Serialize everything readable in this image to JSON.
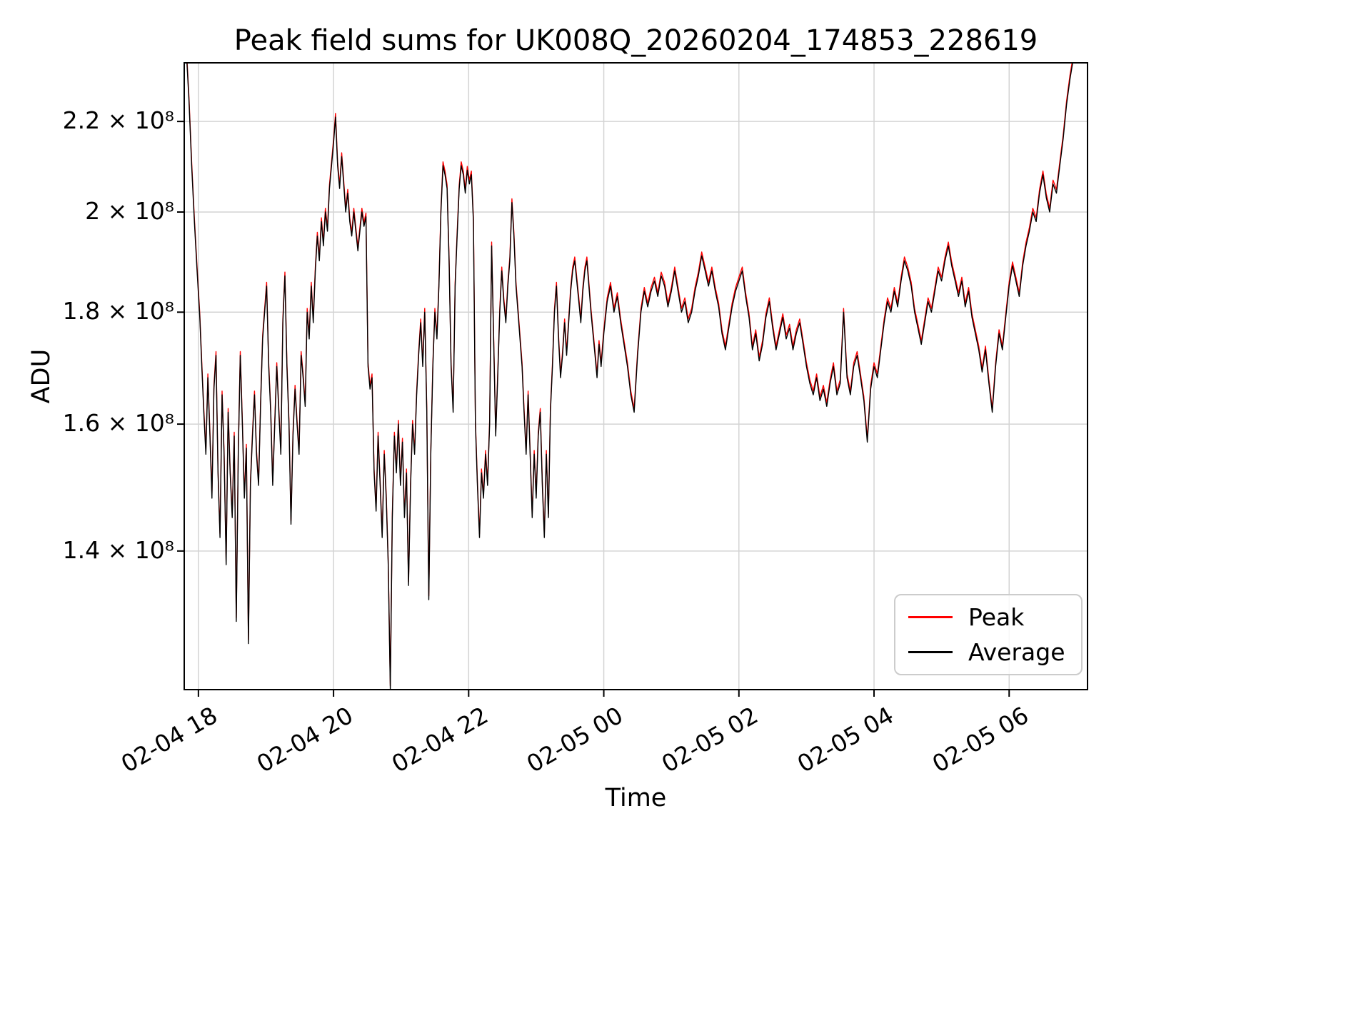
{
  "chart_data": {
    "type": "line",
    "title": "Peak field sums for UK008Q_20260204_174853_228619",
    "xlabel": "Time",
    "ylabel": "ADU",
    "yscale": "log",
    "grid": true,
    "grid_color": "#d4d4d4",
    "spine_color": "#000000",
    "x_reference": "hours since 02-04 00:00",
    "xlim_hours": [
      17.79,
      31.16
    ],
    "value_unit": "1e8 ADU",
    "ylim_1e8": [
      1.21,
      2.34
    ],
    "xticks": [
      {
        "t": 18,
        "label": "02-04 18"
      },
      {
        "t": 20,
        "label": "02-04 20"
      },
      {
        "t": 22,
        "label": "02-04 22"
      },
      {
        "t": 24,
        "label": "02-05 00"
      },
      {
        "t": 26,
        "label": "02-05 02"
      },
      {
        "t": 28,
        "label": "02-05 04"
      },
      {
        "t": 30,
        "label": "02-05 06"
      }
    ],
    "yticks": [
      {
        "v": 1.4,
        "label": "1.4 × 10⁸"
      },
      {
        "v": 1.6,
        "label": "1.6 × 10⁸"
      },
      {
        "v": 1.8,
        "label": "1.8 × 10⁸"
      },
      {
        "v": 2.0,
        "label": "2 × 10⁸"
      },
      {
        "v": 2.2,
        "label": "2.2 × 10⁸"
      }
    ],
    "legend": {
      "position": "lower right"
    },
    "series": [
      {
        "name": "Peak",
        "color": "#ff0000",
        "ratio_to_average": 1.004,
        "linewidth": 1.4
      },
      {
        "name": "Average",
        "color": "#000000",
        "ratio_to_average": 1.0,
        "linewidth": 1.4
      }
    ],
    "points_note": "pairs of [hours since 02-04 00:00, Average value in 1e8 ADU]; Peak = Average * 1.004",
    "points": [
      [
        17.83,
        2.34
      ],
      [
        17.86,
        2.25
      ],
      [
        17.9,
        2.1
      ],
      [
        17.94,
        1.98
      ],
      [
        17.98,
        1.88
      ],
      [
        18.02,
        1.79
      ],
      [
        18.05,
        1.7
      ],
      [
        18.08,
        1.62
      ],
      [
        18.11,
        1.55
      ],
      [
        18.14,
        1.68
      ],
      [
        18.17,
        1.58
      ],
      [
        18.2,
        1.48
      ],
      [
        18.23,
        1.66
      ],
      [
        18.26,
        1.72
      ],
      [
        18.29,
        1.52
      ],
      [
        18.32,
        1.42
      ],
      [
        18.35,
        1.65
      ],
      [
        18.38,
        1.55
      ],
      [
        18.41,
        1.38
      ],
      [
        18.44,
        1.62
      ],
      [
        18.47,
        1.52
      ],
      [
        18.5,
        1.45
      ],
      [
        18.53,
        1.58
      ],
      [
        18.56,
        1.3
      ],
      [
        18.59,
        1.55
      ],
      [
        18.62,
        1.72
      ],
      [
        18.65,
        1.6
      ],
      [
        18.68,
        1.48
      ],
      [
        18.71,
        1.56
      ],
      [
        18.74,
        1.27
      ],
      [
        18.77,
        1.5
      ],
      [
        18.8,
        1.58
      ],
      [
        18.83,
        1.65
      ],
      [
        18.86,
        1.55
      ],
      [
        18.89,
        1.5
      ],
      [
        18.92,
        1.63
      ],
      [
        18.95,
        1.75
      ],
      [
        18.98,
        1.8
      ],
      [
        19.01,
        1.85
      ],
      [
        19.04,
        1.7
      ],
      [
        19.07,
        1.62
      ],
      [
        19.1,
        1.5
      ],
      [
        19.13,
        1.6
      ],
      [
        19.16,
        1.7
      ],
      [
        19.19,
        1.62
      ],
      [
        19.22,
        1.55
      ],
      [
        19.25,
        1.78
      ],
      [
        19.28,
        1.87
      ],
      [
        19.31,
        1.7
      ],
      [
        19.34,
        1.6
      ],
      [
        19.37,
        1.44
      ],
      [
        19.4,
        1.58
      ],
      [
        19.43,
        1.66
      ],
      [
        19.46,
        1.6
      ],
      [
        19.49,
        1.55
      ],
      [
        19.52,
        1.72
      ],
      [
        19.55,
        1.68
      ],
      [
        19.58,
        1.63
      ],
      [
        19.61,
        1.8
      ],
      [
        19.64,
        1.75
      ],
      [
        19.67,
        1.85
      ],
      [
        19.7,
        1.78
      ],
      [
        19.73,
        1.88
      ],
      [
        19.76,
        1.95
      ],
      [
        19.79,
        1.9
      ],
      [
        19.82,
        1.98
      ],
      [
        19.85,
        1.93
      ],
      [
        19.88,
        2.0
      ],
      [
        19.91,
        1.96
      ],
      [
        19.94,
        2.05
      ],
      [
        19.97,
        2.1
      ],
      [
        20.0,
        2.15
      ],
      [
        20.03,
        2.21
      ],
      [
        20.06,
        2.1
      ],
      [
        20.09,
        2.05
      ],
      [
        20.12,
        2.12
      ],
      [
        20.15,
        2.06
      ],
      [
        20.18,
        2.0
      ],
      [
        20.21,
        2.04
      ],
      [
        20.24,
        1.98
      ],
      [
        20.27,
        1.95
      ],
      [
        20.3,
        2.0
      ],
      [
        20.33,
        1.96
      ],
      [
        20.36,
        1.92
      ],
      [
        20.39,
        1.96
      ],
      [
        20.42,
        2.0
      ],
      [
        20.45,
        1.97
      ],
      [
        20.48,
        1.99
      ],
      [
        20.51,
        1.7
      ],
      [
        20.54,
        1.66
      ],
      [
        20.57,
        1.68
      ],
      [
        20.6,
        1.52
      ],
      [
        20.63,
        1.46
      ],
      [
        20.66,
        1.58
      ],
      [
        20.69,
        1.5
      ],
      [
        20.72,
        1.42
      ],
      [
        20.75,
        1.55
      ],
      [
        20.78,
        1.48
      ],
      [
        20.81,
        1.38
      ],
      [
        20.84,
        1.21
      ],
      [
        20.87,
        1.45
      ],
      [
        20.9,
        1.58
      ],
      [
        20.93,
        1.52
      ],
      [
        20.96,
        1.6
      ],
      [
        20.99,
        1.5
      ],
      [
        21.02,
        1.57
      ],
      [
        21.05,
        1.45
      ],
      [
        21.08,
        1.52
      ],
      [
        21.11,
        1.35
      ],
      [
        21.14,
        1.5
      ],
      [
        21.17,
        1.6
      ],
      [
        21.2,
        1.55
      ],
      [
        21.23,
        1.65
      ],
      [
        21.26,
        1.72
      ],
      [
        21.29,
        1.78
      ],
      [
        21.32,
        1.7
      ],
      [
        21.35,
        1.8
      ],
      [
        21.38,
        1.62
      ],
      [
        21.41,
        1.33
      ],
      [
        21.44,
        1.55
      ],
      [
        21.47,
        1.7
      ],
      [
        21.5,
        1.8
      ],
      [
        21.53,
        1.75
      ],
      [
        21.56,
        1.85
      ],
      [
        21.59,
        2.0
      ],
      [
        21.62,
        2.1
      ],
      [
        21.65,
        2.08
      ],
      [
        21.68,
        2.05
      ],
      [
        21.71,
        1.9
      ],
      [
        21.74,
        1.7
      ],
      [
        21.77,
        1.62
      ],
      [
        21.8,
        1.85
      ],
      [
        21.83,
        1.95
      ],
      [
        21.86,
        2.05
      ],
      [
        21.89,
        2.1
      ],
      [
        21.92,
        2.08
      ],
      [
        21.95,
        2.04
      ],
      [
        21.98,
        2.09
      ],
      [
        22.01,
        2.06
      ],
      [
        22.04,
        2.08
      ],
      [
        22.07,
        1.98
      ],
      [
        22.1,
        1.6
      ],
      [
        22.13,
        1.5
      ],
      [
        22.16,
        1.42
      ],
      [
        22.19,
        1.52
      ],
      [
        22.22,
        1.48
      ],
      [
        22.25,
        1.55
      ],
      [
        22.28,
        1.5
      ],
      [
        22.31,
        1.6
      ],
      [
        22.34,
        1.93
      ],
      [
        22.37,
        1.75
      ],
      [
        22.4,
        1.58
      ],
      [
        22.43,
        1.68
      ],
      [
        22.46,
        1.8
      ],
      [
        22.49,
        1.88
      ],
      [
        22.52,
        1.82
      ],
      [
        22.55,
        1.78
      ],
      [
        22.58,
        1.85
      ],
      [
        22.61,
        1.9
      ],
      [
        22.64,
        2.02
      ],
      [
        22.67,
        1.95
      ],
      [
        22.7,
        1.85
      ],
      [
        22.73,
        1.8
      ],
      [
        22.76,
        1.75
      ],
      [
        22.79,
        1.7
      ],
      [
        22.82,
        1.62
      ],
      [
        22.85,
        1.55
      ],
      [
        22.88,
        1.65
      ],
      [
        22.91,
        1.55
      ],
      [
        22.94,
        1.45
      ],
      [
        22.97,
        1.55
      ],
      [
        23.0,
        1.48
      ],
      [
        23.03,
        1.58
      ],
      [
        23.06,
        1.62
      ],
      [
        23.09,
        1.5
      ],
      [
        23.12,
        1.42
      ],
      [
        23.15,
        1.55
      ],
      [
        23.18,
        1.45
      ],
      [
        23.21,
        1.62
      ],
      [
        23.24,
        1.7
      ],
      [
        23.27,
        1.8
      ],
      [
        23.3,
        1.85
      ],
      [
        23.33,
        1.75
      ],
      [
        23.36,
        1.68
      ],
      [
        23.39,
        1.72
      ],
      [
        23.42,
        1.78
      ],
      [
        23.45,
        1.72
      ],
      [
        23.48,
        1.78
      ],
      [
        23.51,
        1.84
      ],
      [
        23.54,
        1.88
      ],
      [
        23.57,
        1.9
      ],
      [
        23.6,
        1.86
      ],
      [
        23.63,
        1.82
      ],
      [
        23.66,
        1.78
      ],
      [
        23.69,
        1.84
      ],
      [
        23.72,
        1.88
      ],
      [
        23.75,
        1.9
      ],
      [
        23.78,
        1.85
      ],
      [
        23.81,
        1.8
      ],
      [
        23.84,
        1.76
      ],
      [
        23.87,
        1.72
      ],
      [
        23.9,
        1.68
      ],
      [
        23.93,
        1.74
      ],
      [
        23.96,
        1.7
      ],
      [
        24.0,
        1.76
      ],
      [
        24.05,
        1.82
      ],
      [
        24.1,
        1.85
      ],
      [
        24.15,
        1.8
      ],
      [
        24.2,
        1.83
      ],
      [
        24.25,
        1.78
      ],
      [
        24.3,
        1.74
      ],
      [
        24.35,
        1.7
      ],
      [
        24.4,
        1.65
      ],
      [
        24.45,
        1.62
      ],
      [
        24.5,
        1.72
      ],
      [
        24.55,
        1.8
      ],
      [
        24.6,
        1.84
      ],
      [
        24.65,
        1.81
      ],
      [
        24.7,
        1.84
      ],
      [
        24.75,
        1.86
      ],
      [
        24.8,
        1.83
      ],
      [
        24.85,
        1.87
      ],
      [
        24.9,
        1.85
      ],
      [
        24.95,
        1.81
      ],
      [
        25.0,
        1.84
      ],
      [
        25.05,
        1.88
      ],
      [
        25.1,
        1.84
      ],
      [
        25.15,
        1.8
      ],
      [
        25.2,
        1.82
      ],
      [
        25.25,
        1.78
      ],
      [
        25.3,
        1.8
      ],
      [
        25.35,
        1.84
      ],
      [
        25.4,
        1.87
      ],
      [
        25.45,
        1.91
      ],
      [
        25.5,
        1.88
      ],
      [
        25.55,
        1.85
      ],
      [
        25.6,
        1.88
      ],
      [
        25.65,
        1.84
      ],
      [
        25.7,
        1.81
      ],
      [
        25.75,
        1.76
      ],
      [
        25.8,
        1.73
      ],
      [
        25.85,
        1.77
      ],
      [
        25.9,
        1.81
      ],
      [
        25.95,
        1.84
      ],
      [
        26.0,
        1.86
      ],
      [
        26.05,
        1.88
      ],
      [
        26.1,
        1.83
      ],
      [
        26.15,
        1.79
      ],
      [
        26.2,
        1.73
      ],
      [
        26.25,
        1.76
      ],
      [
        26.3,
        1.71
      ],
      [
        26.35,
        1.74
      ],
      [
        26.4,
        1.79
      ],
      [
        26.45,
        1.82
      ],
      [
        26.5,
        1.77
      ],
      [
        26.55,
        1.73
      ],
      [
        26.6,
        1.76
      ],
      [
        26.65,
        1.79
      ],
      [
        26.7,
        1.75
      ],
      [
        26.75,
        1.77
      ],
      [
        26.8,
        1.73
      ],
      [
        26.85,
        1.76
      ],
      [
        26.9,
        1.78
      ],
      [
        26.95,
        1.74
      ],
      [
        27.0,
        1.7
      ],
      [
        27.05,
        1.67
      ],
      [
        27.1,
        1.65
      ],
      [
        27.15,
        1.68
      ],
      [
        27.2,
        1.64
      ],
      [
        27.25,
        1.66
      ],
      [
        27.3,
        1.63
      ],
      [
        27.35,
        1.67
      ],
      [
        27.4,
        1.7
      ],
      [
        27.45,
        1.65
      ],
      [
        27.5,
        1.67
      ],
      [
        27.55,
        1.8
      ],
      [
        27.6,
        1.68
      ],
      [
        27.65,
        1.65
      ],
      [
        27.7,
        1.7
      ],
      [
        27.75,
        1.72
      ],
      [
        27.8,
        1.68
      ],
      [
        27.85,
        1.64
      ],
      [
        27.9,
        1.57
      ],
      [
        27.95,
        1.66
      ],
      [
        28.0,
        1.7
      ],
      [
        28.05,
        1.68
      ],
      [
        28.1,
        1.73
      ],
      [
        28.15,
        1.78
      ],
      [
        28.2,
        1.82
      ],
      [
        28.25,
        1.8
      ],
      [
        28.3,
        1.84
      ],
      [
        28.35,
        1.81
      ],
      [
        28.4,
        1.86
      ],
      [
        28.45,
        1.9
      ],
      [
        28.5,
        1.88
      ],
      [
        28.55,
        1.85
      ],
      [
        28.6,
        1.8
      ],
      [
        28.65,
        1.77
      ],
      [
        28.7,
        1.74
      ],
      [
        28.75,
        1.78
      ],
      [
        28.8,
        1.82
      ],
      [
        28.85,
        1.8
      ],
      [
        28.9,
        1.84
      ],
      [
        28.95,
        1.88
      ],
      [
        29.0,
        1.86
      ],
      [
        29.05,
        1.9
      ],
      [
        29.1,
        1.93
      ],
      [
        29.15,
        1.89
      ],
      [
        29.2,
        1.86
      ],
      [
        29.25,
        1.83
      ],
      [
        29.3,
        1.86
      ],
      [
        29.35,
        1.81
      ],
      [
        29.4,
        1.84
      ],
      [
        29.45,
        1.79
      ],
      [
        29.5,
        1.76
      ],
      [
        29.55,
        1.73
      ],
      [
        29.6,
        1.69
      ],
      [
        29.65,
        1.73
      ],
      [
        29.7,
        1.67
      ],
      [
        29.75,
        1.62
      ],
      [
        29.8,
        1.7
      ],
      [
        29.85,
        1.76
      ],
      [
        29.9,
        1.73
      ],
      [
        29.95,
        1.79
      ],
      [
        30.0,
        1.85
      ],
      [
        30.05,
        1.89
      ],
      [
        30.1,
        1.86
      ],
      [
        30.15,
        1.83
      ],
      [
        30.2,
        1.89
      ],
      [
        30.25,
        1.93
      ],
      [
        30.3,
        1.96
      ],
      [
        30.35,
        2.0
      ],
      [
        30.4,
        1.98
      ],
      [
        30.45,
        2.04
      ],
      [
        30.5,
        2.08
      ],
      [
        30.55,
        2.03
      ],
      [
        30.6,
        2.0
      ],
      [
        30.65,
        2.06
      ],
      [
        30.7,
        2.04
      ],
      [
        30.75,
        2.1
      ],
      [
        30.8,
        2.16
      ],
      [
        30.85,
        2.24
      ],
      [
        30.9,
        2.3
      ],
      [
        30.94,
        2.34
      ]
    ]
  }
}
